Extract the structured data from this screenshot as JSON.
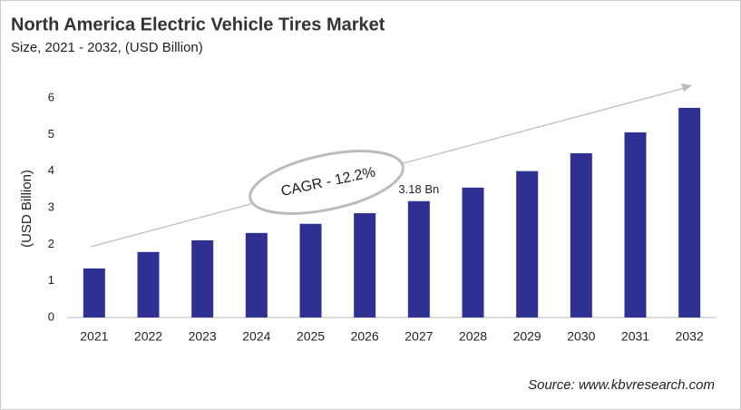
{
  "chart_data": {
    "type": "bar",
    "title": "North America Electric Vehicle Tires Market",
    "subtitle": "Size, 2021 - 2032, (USD Billion)",
    "y_label": "(USD Billion)",
    "categories": [
      "2021",
      "2022",
      "2023",
      "2024",
      "2025",
      "2026",
      "2027",
      "2028",
      "2029",
      "2030",
      "2031",
      "2032"
    ],
    "values": [
      1.34,
      1.79,
      2.11,
      2.31,
      2.56,
      2.85,
      3.18,
      3.55,
      4.0,
      4.49,
      5.06,
      5.73
    ],
    "value_labels": [
      null,
      null,
      null,
      null,
      null,
      null,
      "3.18 Bn",
      null,
      null,
      null,
      null,
      null
    ],
    "color": "#2e3192",
    "ylim": [
      0,
      6
    ],
    "yticks": [
      0,
      1,
      2,
      3,
      4,
      5,
      6
    ],
    "grid": false,
    "annotation": "CAGR - 12.2%",
    "source": "Source: www.kbvresearch.com"
  }
}
